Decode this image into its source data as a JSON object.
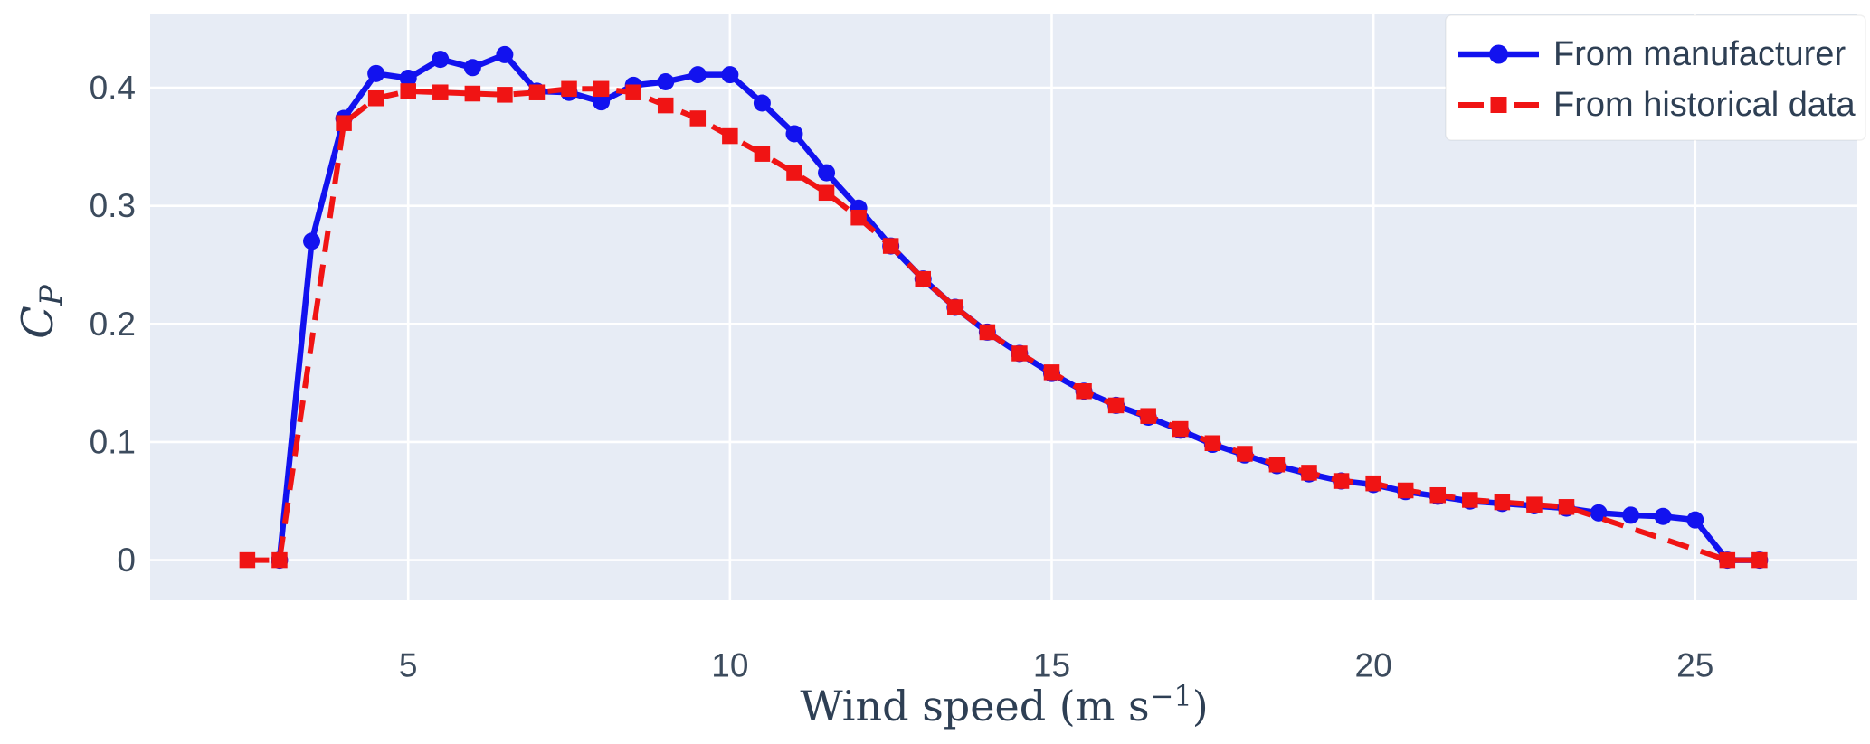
{
  "figure": {
    "background": "#ffffff",
    "plot_background": "#e7ecf5",
    "grid_color": "#ffffff",
    "tick_color": "#3c4b5d",
    "label_color": "#2e3f54"
  },
  "chart_data": {
    "type": "line",
    "title": "",
    "xlabel": "Wind speed (m s−1)",
    "xlabel_parts": {
      "prefix": "Wind speed (m s",
      "superscript": "−1",
      "suffix": ")"
    },
    "ylabel": "C_P",
    "ylabel_parts": {
      "main": "C",
      "subscript": "P"
    },
    "x_ticks": [
      5,
      10,
      15,
      20,
      25
    ],
    "y_ticks": [
      0,
      0.1,
      0.2,
      0.3,
      0.4
    ],
    "y_tick_labels": [
      "0",
      "0.1",
      "0.2",
      "0.3",
      "0.4"
    ],
    "xlim": [
      0.99,
      27.52
    ],
    "ylim": [
      -0.034,
      0.462
    ],
    "grid": true,
    "legend_position": "upper right",
    "series": [
      {
        "name": "From manufacturer",
        "color": "#1212ef",
        "line_style": "solid",
        "marker": "circle",
        "x": [
          3,
          3.5,
          4,
          4.5,
          5,
          5.5,
          6,
          6.5,
          7,
          7.5,
          8,
          8.5,
          9,
          9.5,
          10,
          10.5,
          11,
          11.5,
          12,
          12.5,
          13,
          13.5,
          14,
          14.5,
          15,
          15.5,
          16,
          16.5,
          17,
          17.5,
          18,
          18.5,
          19,
          19.5,
          20,
          20.5,
          21,
          21.5,
          22,
          22.5,
          23,
          23.5,
          24,
          24.5,
          25,
          25.5,
          26
        ],
        "y": [
          0,
          0.27,
          0.374,
          0.412,
          0.408,
          0.424,
          0.417,
          0.428,
          0.397,
          0.396,
          0.388,
          0.402,
          0.405,
          0.411,
          0.411,
          0.387,
          0.361,
          0.328,
          0.298,
          0.266,
          0.238,
          0.214,
          0.193,
          0.175,
          0.158,
          0.143,
          0.131,
          0.121,
          0.11,
          0.098,
          0.089,
          0.08,
          0.073,
          0.067,
          0.064,
          0.058,
          0.054,
          0.05,
          0.048,
          0.046,
          0.044,
          0.04,
          0.038,
          0.037,
          0.034,
          0,
          0
        ]
      },
      {
        "name": "From historical data",
        "color": "#f01414",
        "line_style": "dashed",
        "marker": "square",
        "x": [
          2.5,
          3,
          4,
          4.5,
          5,
          5.5,
          6,
          6.5,
          7,
          7.5,
          8,
          8.5,
          9,
          9.5,
          10,
          10.5,
          11,
          11.5,
          12,
          12.5,
          13,
          13.5,
          14,
          14.5,
          15,
          15.5,
          16,
          16.5,
          17,
          17.5,
          18,
          18.5,
          19,
          19.5,
          20,
          20.5,
          21,
          21.5,
          22,
          22.5,
          23,
          25.5,
          26
        ],
        "y": [
          0,
          0,
          0.37,
          0.391,
          0.397,
          0.396,
          0.395,
          0.394,
          0.396,
          0.399,
          0.399,
          0.396,
          0.385,
          0.374,
          0.359,
          0.344,
          0.328,
          0.311,
          0.29,
          0.266,
          0.238,
          0.214,
          0.193,
          0.175,
          0.159,
          0.143,
          0.131,
          0.122,
          0.111,
          0.099,
          0.09,
          0.081,
          0.074,
          0.067,
          0.065,
          0.059,
          0.055,
          0.051,
          0.049,
          0.047,
          0.045,
          0,
          0
        ]
      }
    ]
  },
  "legend": {
    "items": [
      {
        "label": "From manufacturer"
      },
      {
        "label": "From historical data"
      }
    ]
  }
}
